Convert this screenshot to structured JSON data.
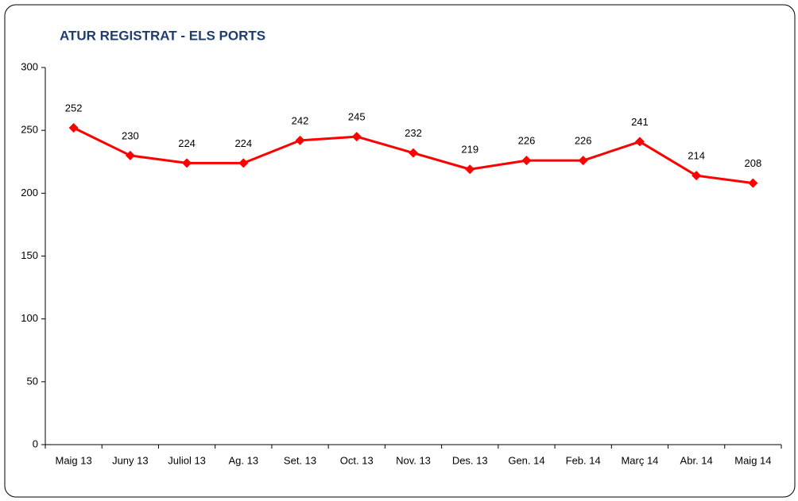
{
  "chart_data": {
    "type": "line",
    "title": "ATUR REGISTRAT - ELS PORTS",
    "categories": [
      "Maig 13",
      "Juny 13",
      "Juliol 13",
      "Ag. 13",
      "Set. 13",
      "Oct. 13",
      "Nov. 13",
      "Des. 13",
      "Gen. 14",
      "Feb. 14",
      "Març 14",
      "Abr. 14",
      "Maig 14"
    ],
    "values": [
      252,
      230,
      224,
      224,
      242,
      245,
      232,
      219,
      226,
      226,
      241,
      214,
      208
    ],
    "color": "#ff0000",
    "ylim": [
      0,
      300
    ],
    "yticks": [
      0,
      50,
      100,
      150,
      200,
      250,
      300
    ],
    "grid": false
  }
}
